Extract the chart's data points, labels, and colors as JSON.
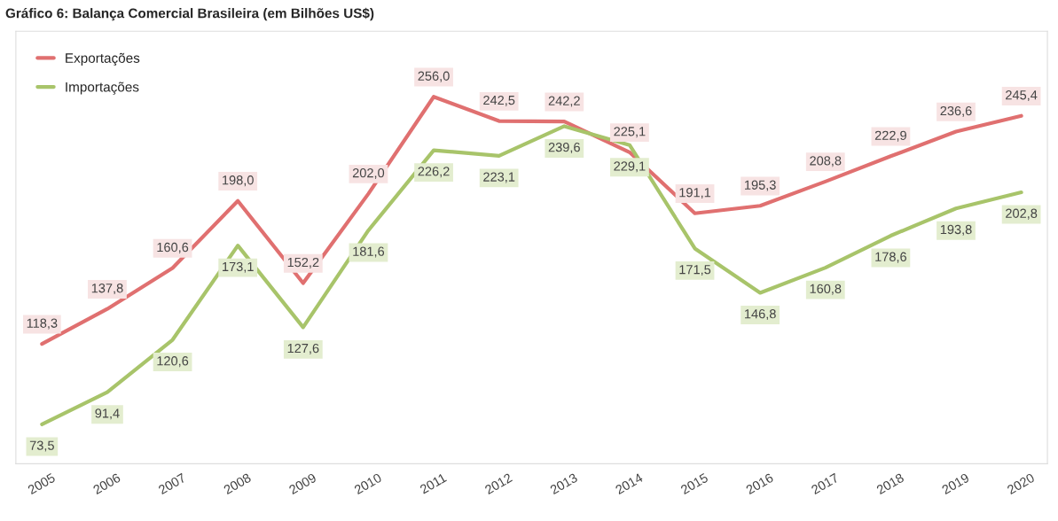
{
  "chart_data": {
    "type": "line",
    "title": "Gráfico 6: Balança Comercial Brasileira (em Bilhões US$)",
    "categories": [
      "2005",
      "2006",
      "2007",
      "2008",
      "2009",
      "2010",
      "2011",
      "2012",
      "2013",
      "2014",
      "2015",
      "2016",
      "2017",
      "2018",
      "2019",
      "2020"
    ],
    "series": [
      {
        "name": "Exportações",
        "color": "#e07070",
        "values": [
          118.3,
          137.8,
          160.6,
          198.0,
          152.2,
          202.0,
          256.0,
          242.5,
          242.2,
          225.1,
          191.1,
          195.3,
          208.8,
          222.9,
          236.6,
          245.4
        ],
        "value_labels": [
          "118,3",
          "137,8",
          "160,6",
          "198,0",
          "152,2",
          "202,0",
          "256,0",
          "242,5",
          "242,2",
          "225,1",
          "191,1",
          "195,3",
          "208,8",
          "222,9",
          "236,6",
          "245,4"
        ]
      },
      {
        "name": "Importações",
        "color": "#a8c46a",
        "values": [
          73.5,
          91.4,
          120.6,
          173.1,
          127.6,
          181.6,
          226.2,
          223.1,
          239.6,
          229.1,
          171.5,
          146.8,
          160.8,
          178.6,
          193.8,
          202.8
        ],
        "value_labels": [
          "73,5",
          "91,4",
          "120,6",
          "173,1",
          "127,6",
          "181,6",
          "226,2",
          "223,1",
          "239,6",
          "229,1",
          "171,5",
          "146,8",
          "160,8",
          "178,6",
          "193,8",
          "202,8"
        ]
      }
    ],
    "legend": "top left",
    "marker": "none",
    "line_style": "solid"
  }
}
